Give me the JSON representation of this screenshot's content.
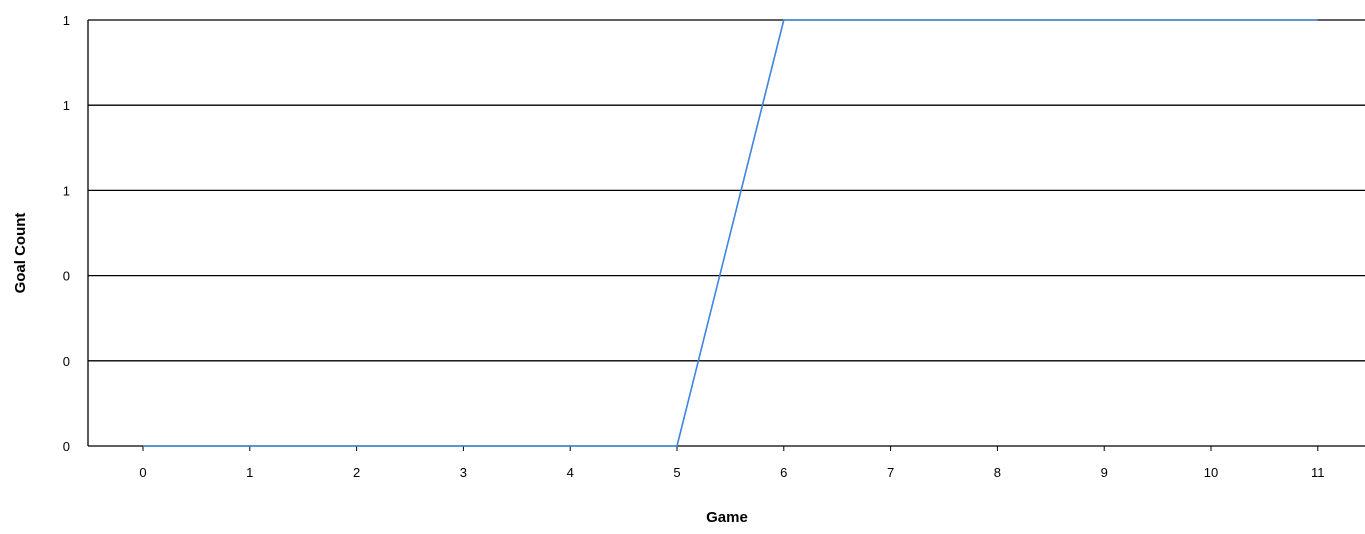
{
  "chart_data": {
    "type": "line",
    "title": "",
    "xlabel": "Game",
    "ylabel": "Goal Count",
    "x": [
      0,
      1,
      2,
      3,
      4,
      5,
      6,
      7,
      8,
      9,
      10,
      11
    ],
    "x_tick_labels": [
      "0",
      "1",
      "2",
      "3",
      "4",
      "5",
      "6",
      "7",
      "8",
      "9",
      "10",
      "11"
    ],
    "y_tick_labels": [
      "0",
      "0",
      "0",
      "1",
      "1",
      "1"
    ],
    "ylim": [
      0,
      1
    ],
    "grid": "horizontal",
    "legend": "none",
    "series": [
      {
        "color": "#3d85e0",
        "values": [
          0,
          0,
          0,
          0,
          0,
          0,
          1,
          1,
          1,
          1,
          1,
          1
        ]
      }
    ]
  }
}
